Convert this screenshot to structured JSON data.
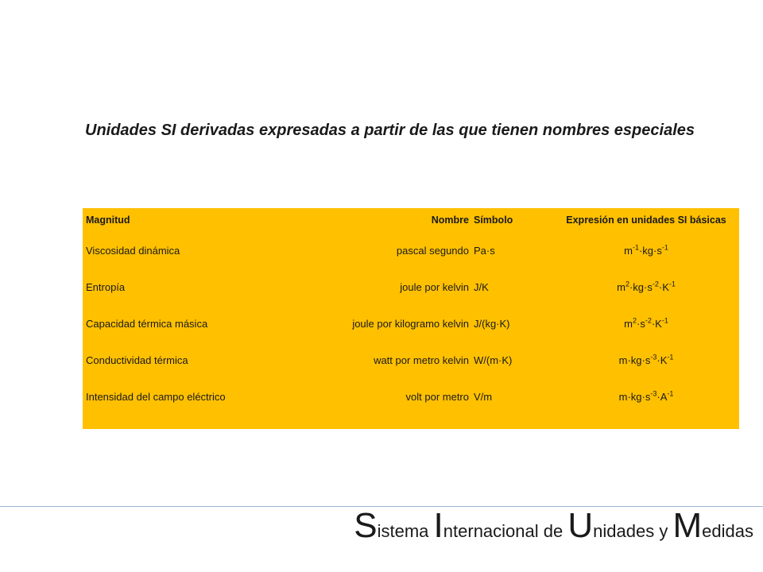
{
  "title": "Unidades SI derivadas expresadas a partir de las que tienen nombres especiales",
  "colors": {
    "table_background": "#ffc000",
    "footer_divider": "#9db7d3"
  },
  "table": {
    "headers": [
      "Magnitud",
      "Nombre",
      "Símbolo",
      "Expresión en unidades SI básicas"
    ],
    "rows": [
      {
        "magnitud": "Viscosidad dinámica",
        "nombre": "pascal segundo",
        "simbolo": "Pa·s",
        "expresion": "m-1·kg·s-1"
      },
      {
        "magnitud": "Entropía",
        "nombre": "joule por kelvin",
        "simbolo": "J/K",
        "expresion": "m2·kg·s-2·K-1"
      },
      {
        "magnitud": "Capacidad térmica másica",
        "nombre": "joule por kilogramo kelvin",
        "simbolo": "J/(kg·K)",
        "expresion": "m2·s-2·K-1"
      },
      {
        "magnitud": "Conductividad térmica",
        "nombre": "watt por metro kelvin",
        "simbolo": "W/(m·K)",
        "expresion": "m·kg·s-3·K-1"
      },
      {
        "magnitud": "Intensidad del campo eléctrico",
        "nombre": "volt por metro",
        "simbolo": "V/m",
        "expresion": "m·kg·s-3·A-1"
      }
    ]
  },
  "footer": {
    "words": [
      {
        "initial": "S",
        "rest": "istema"
      },
      {
        "initial": "I",
        "rest": "nternacional"
      },
      {
        "initial": "",
        "rest": "de"
      },
      {
        "initial": "U",
        "rest": "nidades"
      },
      {
        "initial": "",
        "rest": "y"
      },
      {
        "initial": "M",
        "rest": "edidas"
      }
    ]
  }
}
